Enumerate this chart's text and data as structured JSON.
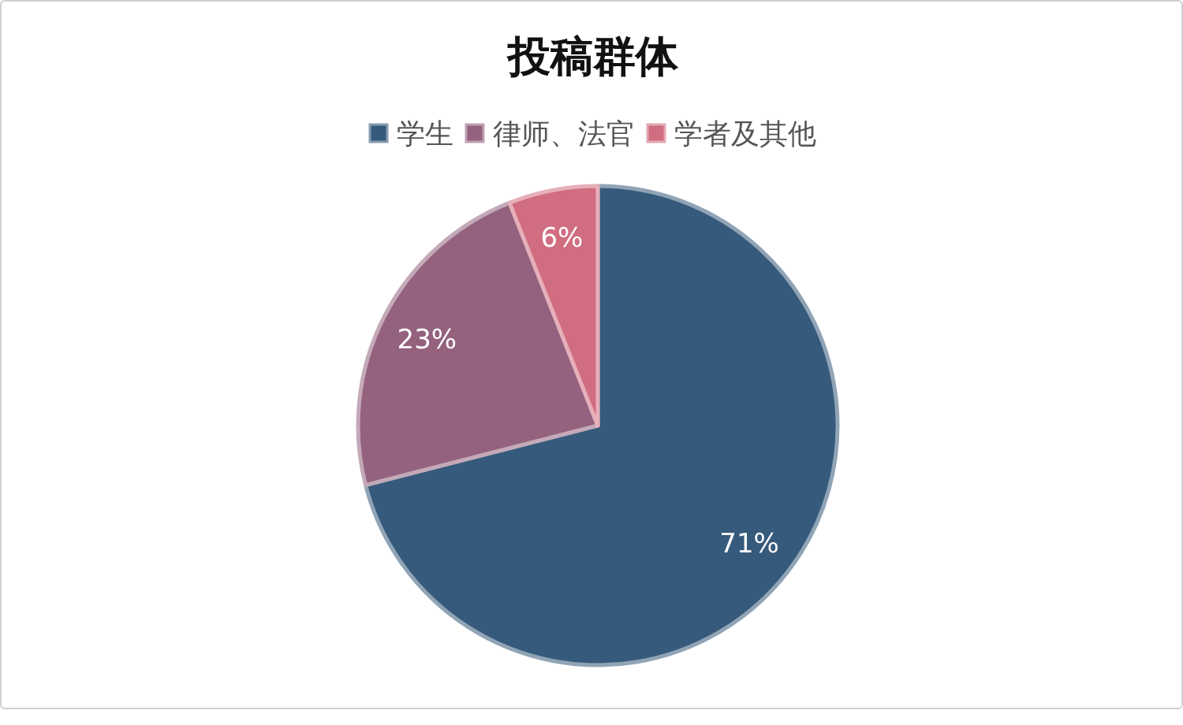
{
  "chart_data": {
    "type": "pie",
    "title": "投稿群体",
    "categories": [
      "学生",
      "律师、法官",
      "学者及其他"
    ],
    "values": [
      71,
      23,
      6
    ],
    "colors": [
      "#365a7b",
      "#94627e",
      "#d16d80"
    ],
    "value_labels": [
      "71%",
      "23%",
      "6%"
    ],
    "legend": "top"
  }
}
